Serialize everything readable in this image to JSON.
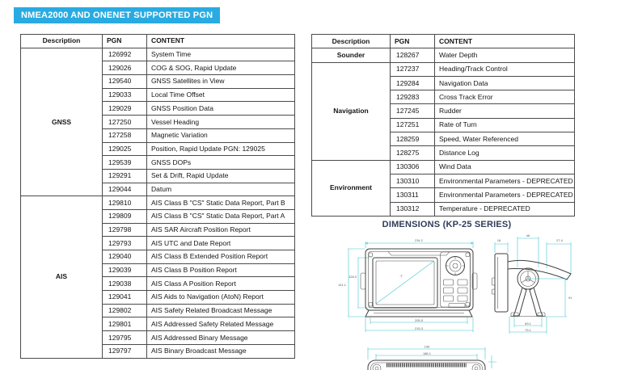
{
  "page_title": "NMEA2000 AND ONENET SUPPORTED PGN",
  "accent_color": "#29ABE2",
  "heading_color": "#2E3D59",
  "dim_line_color": "#3FC5D6",
  "left_table": {
    "headers": [
      "Description",
      "PGN",
      "CONTENT"
    ],
    "groups": [
      {
        "label": "GNSS",
        "rows": [
          [
            "126992",
            "System Time"
          ],
          [
            "129026",
            "COG & SOG, Rapid Update"
          ],
          [
            "129540",
            "GNSS Satellites in View"
          ],
          [
            "129033",
            "Local Time Offset"
          ],
          [
            "129029",
            "GNSS Position Data"
          ],
          [
            "127250",
            "Vessel Heading"
          ],
          [
            "127258",
            "Magnetic Variation"
          ],
          [
            "129025",
            "Position, Rapid Update PGN: 129025"
          ],
          [
            "129539",
            "GNSS DOPs"
          ],
          [
            "129291",
            "Set & Drift, Rapid Update"
          ],
          [
            "129044",
            "Datum"
          ]
        ]
      },
      {
        "label": "AIS",
        "rows": [
          [
            "129810",
            "AIS Class B \"CS\" Static Data Report, Part B"
          ],
          [
            "129809",
            "AIS Class B \"CS\" Static Data Report, Part A"
          ],
          [
            "129798",
            "AIS SAR Aircraft Position Report"
          ],
          [
            "129793",
            "AIS UTC and Date Report"
          ],
          [
            "129040",
            "AIS Class B Extended Position Report"
          ],
          [
            "129039",
            "AIS Class B Position Report"
          ],
          [
            "129038",
            "AIS Class A Position Report"
          ],
          [
            "129041",
            "AIS Aids to Navigation (AtoN) Report"
          ],
          [
            "129802",
            "AIS Safety Related Broadcast Message"
          ],
          [
            "129801",
            "AIS Addressed Safety Related Message"
          ],
          [
            "129795",
            "AIS Addressed Binary Message"
          ],
          [
            "129797",
            "AIS Binary Broadcast Message"
          ]
        ]
      }
    ]
  },
  "right_table": {
    "headers": [
      "Description",
      "PGN",
      "CONTENT"
    ],
    "groups": [
      {
        "label": "Sounder",
        "rows": [
          [
            "128267",
            "Water Depth"
          ]
        ]
      },
      {
        "label": "Navigation",
        "rows": [
          [
            "127237",
            "Heading/Track Control"
          ],
          [
            "129284",
            "Navigation Data"
          ],
          [
            "129283",
            "Cross Track Error"
          ],
          [
            "127245",
            "Rudder"
          ],
          [
            "127251",
            "Rate of Turn"
          ],
          [
            "128259",
            "Speed, Water Referenced"
          ],
          [
            "128275",
            "Distance Log"
          ]
        ]
      },
      {
        "label": "Environment",
        "rows": [
          [
            "130306",
            "Wind Data"
          ],
          [
            "130310",
            "Environmental Parameters - DEPRECATED"
          ],
          [
            "130311",
            "Environmental Parameters - DEPRECATED"
          ],
          [
            "130312",
            "Temperature - DEPRECATED"
          ]
        ]
      }
    ]
  },
  "dimensions": {
    "title": "DIMENSIONS (KP-25 SERIES)",
    "front": {
      "top_width": "234.2",
      "left_outer_height": "141.1",
      "left_inner_height": "128.3",
      "screen_diagonal": "7\"",
      "bottom_inner_width": "205.5",
      "bottom_outer_width": "215.3"
    },
    "side": {
      "unit_depth": "18",
      "bracket_width": "46",
      "arm_overhang": "27.4",
      "bracket_height": "91",
      "base_inner_width": "69.1",
      "base_outer_width": "75.1"
    },
    "bottom": {
      "outer_width": "196",
      "inner_width": "186.1"
    }
  }
}
